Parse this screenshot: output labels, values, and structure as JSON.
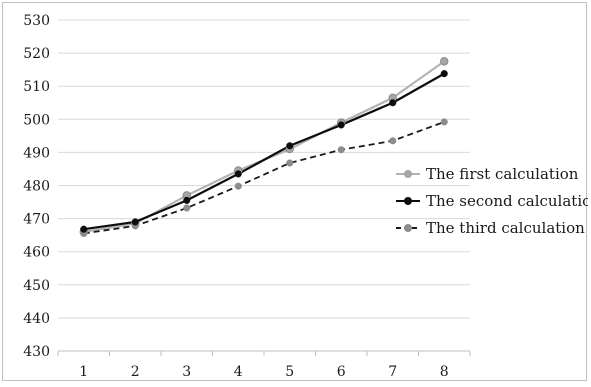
{
  "chart_data": {
    "type": "line",
    "title": "",
    "xlabel": "",
    "ylabel": "",
    "x": [
      1,
      2,
      3,
      4,
      5,
      6,
      7,
      8
    ],
    "ylim": [
      430,
      530
    ],
    "yticks": [
      430,
      440,
      450,
      460,
      470,
      480,
      490,
      500,
      510,
      520,
      530
    ],
    "grid": {
      "horizontal": true,
      "vertical": false
    },
    "legend_position": "right",
    "series": [
      {
        "name": "The first calculation",
        "values": [
          466.0,
          468.5,
          477.0,
          484.5,
          491.0,
          499.0,
          506.5,
          517.5
        ],
        "line_color": "#b3b3b3",
        "marker_color": "#a6a6a6",
        "dash": "solid"
      },
      {
        "name": "The second calculation",
        "values": [
          466.8,
          469.0,
          475.5,
          483.5,
          492.0,
          498.3,
          505.0,
          513.8
        ],
        "line_color": "#0d0d0d",
        "marker_color": "#0d0d0d",
        "dash": "solid"
      },
      {
        "name": "The third calculation",
        "values": [
          465.5,
          467.8,
          473.2,
          479.8,
          486.8,
          490.8,
          493.5,
          499.2
        ],
        "line_color": "#1a1a1a",
        "marker_color": "#8c8c8c",
        "dash": "dashed"
      }
    ]
  }
}
